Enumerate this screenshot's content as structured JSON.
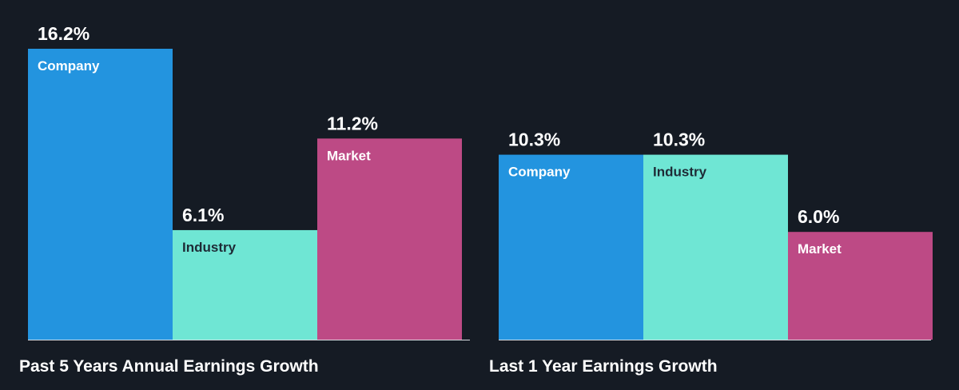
{
  "chart_data": [
    {
      "type": "bar",
      "title": "Past 5 Years Annual Earnings Growth",
      "categories": [
        "Company",
        "Industry",
        "Market"
      ],
      "values": [
        16.2,
        6.1,
        11.2
      ],
      "value_labels": [
        "16.2%",
        "6.1%",
        "11.2%"
      ],
      "ylim": [
        0,
        16.2
      ],
      "grid": false
    },
    {
      "type": "bar",
      "title": "Last 1 Year Earnings Growth",
      "categories": [
        "Company",
        "Industry",
        "Market"
      ],
      "values": [
        10.3,
        10.3,
        6.0
      ],
      "value_labels": [
        "10.3%",
        "10.3%",
        "6.0%"
      ],
      "ylim": [
        0,
        16.2
      ],
      "grid": false
    }
  ],
  "colors": {
    "background": "#151b24",
    "company": "#2394df",
    "industry": "#6fe6d4",
    "market": "#bd4a85",
    "label_on_dark_bar": "#ffffff",
    "label_on_light_bar": "#1e2b36",
    "baseline": "#d7dbe0"
  }
}
